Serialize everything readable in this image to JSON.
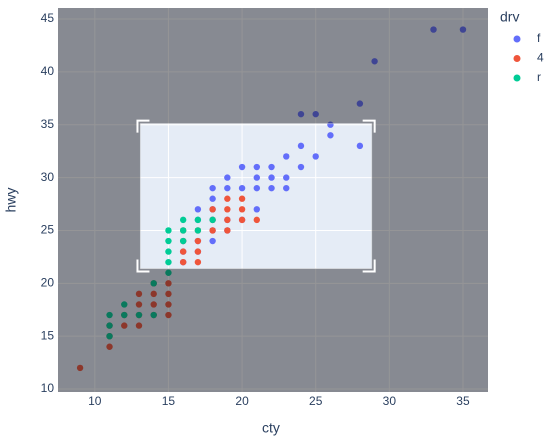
{
  "chart_data": {
    "type": "scatter",
    "x_label": "cty",
    "y_label": "hwy",
    "legend_title": "drv",
    "xlim": [
      7.5,
      36.7
    ],
    "ylim": [
      9.72,
      46.04
    ],
    "xticks": [
      10,
      15,
      20,
      25,
      30,
      35
    ],
    "yticks": [
      10,
      15,
      20,
      25,
      30,
      35,
      40,
      45
    ],
    "grid": true,
    "legend": "right",
    "selection": {
      "x": [
        13.1,
        28.8
      ],
      "y": [
        21.4,
        35.1
      ]
    },
    "series": [
      {
        "name": "f",
        "color": "#636efa",
        "x": [
          33,
          35,
          29,
          28,
          24,
          25,
          26,
          26,
          24,
          28,
          23,
          25,
          22,
          20,
          21,
          24,
          19,
          21,
          22,
          23,
          20,
          21,
          22,
          18,
          19,
          23,
          18,
          17,
          18,
          21,
          17,
          18,
          19,
          20,
          18,
          19,
          16,
          17,
          18,
          16,
          17,
          16
        ],
        "y": [
          44,
          44,
          41,
          37,
          36,
          36,
          35,
          34,
          33,
          33,
          32,
          32,
          31,
          31,
          31,
          31,
          30,
          30,
          30,
          30,
          29,
          29,
          29,
          29,
          29,
          29,
          28,
          27,
          27,
          27,
          26,
          26,
          26,
          26,
          25,
          25,
          24,
          24,
          24,
          23,
          23,
          22
        ]
      },
      {
        "name": "4",
        "color": "#EF553B",
        "x": [
          9,
          11,
          11,
          12,
          13,
          11,
          14,
          13,
          12,
          13,
          14,
          13,
          14,
          15,
          14,
          15,
          15,
          15,
          16,
          17,
          16,
          16,
          17,
          17,
          16,
          17,
          18,
          19,
          18,
          19,
          20,
          21,
          19,
          20,
          20,
          19,
          18
        ],
        "y": [
          12,
          14,
          15,
          16,
          16,
          16,
          17,
          17,
          17,
          18,
          18,
          19,
          19,
          19,
          20,
          20,
          18,
          17,
          22,
          22,
          23,
          24,
          23,
          24,
          25,
          25,
          25,
          25,
          26,
          26,
          26,
          26,
          27,
          27,
          28,
          28,
          27
        ]
      },
      {
        "name": "r",
        "color": "#00cc96",
        "x": [
          11,
          11,
          11,
          12,
          12,
          13,
          14,
          15,
          15,
          15,
          15,
          15,
          16,
          16,
          16,
          17,
          18,
          17,
          14
        ],
        "y": [
          15,
          16,
          17,
          17,
          18,
          17,
          20,
          21,
          22,
          23,
          24,
          25,
          24,
          25,
          26,
          26,
          26,
          25,
          17
        ]
      }
    ]
  }
}
